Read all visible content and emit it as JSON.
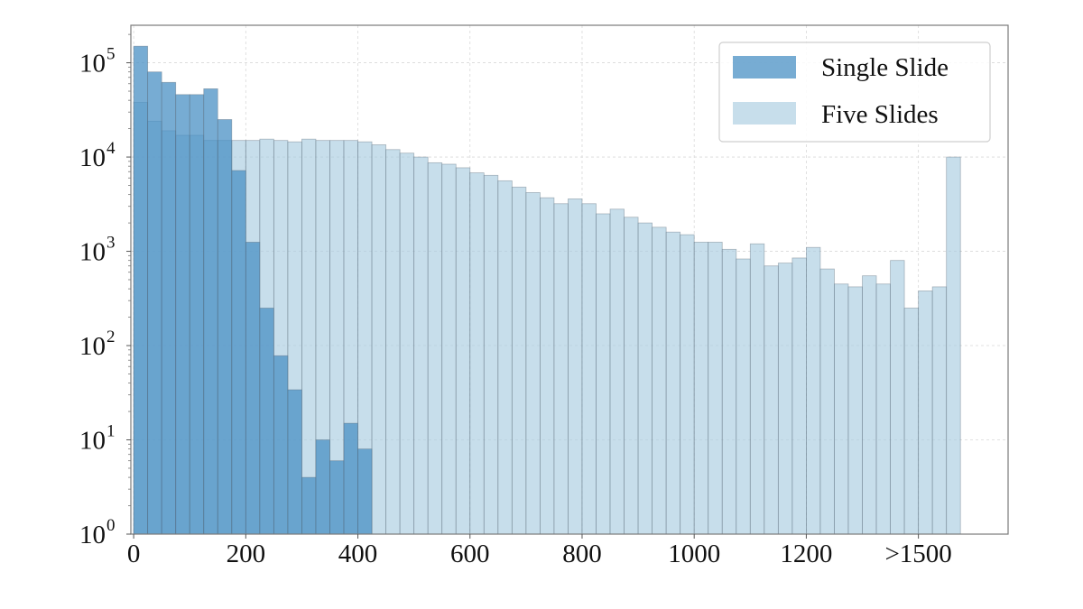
{
  "chart_data": {
    "type": "bar",
    "scale": "log",
    "grid": true,
    "legend_position": "top-right",
    "x_tick_labels": [
      "0",
      "200",
      "400",
      "600",
      "800",
      "1000",
      "1200",
      ">1500"
    ],
    "x_tick_values": [
      0,
      200,
      400,
      600,
      800,
      1000,
      1200,
      1400
    ],
    "y_tick_exponents": [
      "0",
      "1",
      "2",
      "3",
      "4",
      "5"
    ],
    "y_tick_base": "10",
    "bin_width": 25,
    "xlim": [
      -5,
      1560
    ],
    "ylim": [
      1,
      250000
    ],
    "series": [
      {
        "name": "Single Slide",
        "color": "#4a90c4",
        "values": [
          150000,
          80000,
          62000,
          46000,
          46000,
          53000,
          25000,
          7200,
          1250,
          250,
          78,
          34,
          4,
          10,
          6,
          15,
          8
        ]
      },
      {
        "name": "Five Slides",
        "color": "#a9cde1",
        "values": [
          38000,
          24000,
          19000,
          17000,
          17000,
          15000,
          15000,
          15000,
          15000,
          15500,
          15000,
          14500,
          15500,
          15000,
          15000,
          15000,
          14500,
          13500,
          12000,
          11000,
          10000,
          8700,
          8400,
          7700,
          6800,
          6400,
          5600,
          4800,
          4200,
          3700,
          3200,
          3600,
          3200,
          2500,
          2800,
          2300,
          2000,
          1800,
          1600,
          1500,
          1250,
          1250,
          1050,
          830,
          1200,
          700,
          750,
          850,
          1100,
          650,
          450,
          420,
          550,
          450,
          800,
          250,
          380,
          420,
          10000
        ]
      }
    ]
  }
}
